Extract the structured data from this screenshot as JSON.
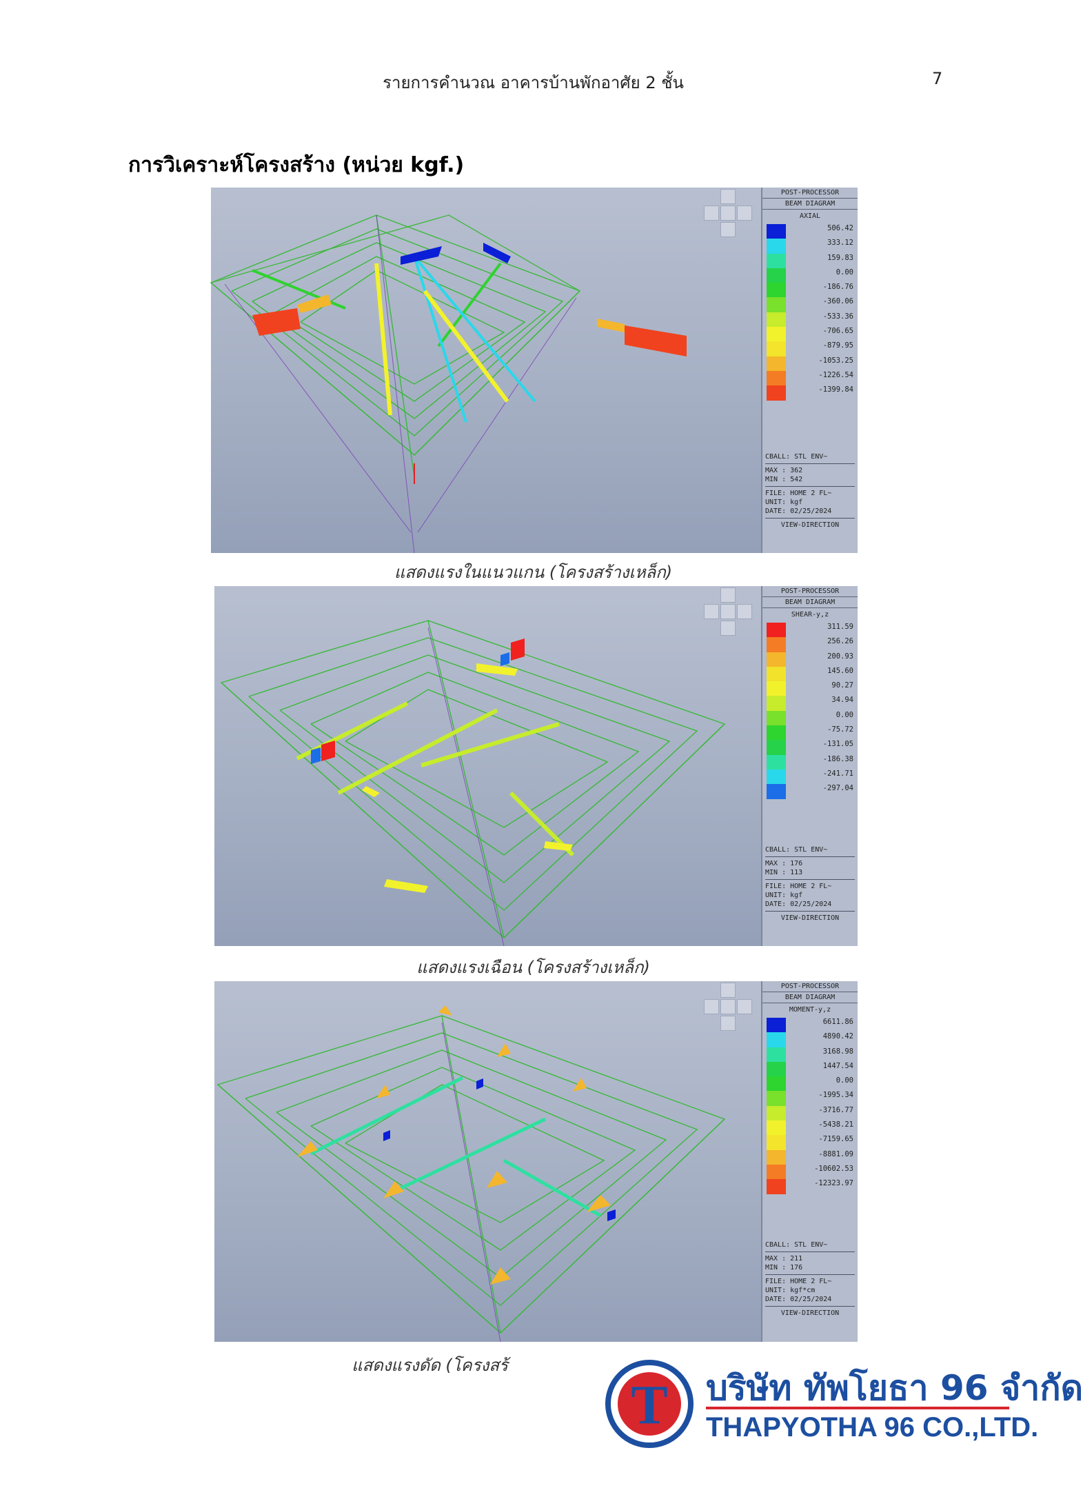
{
  "header": {
    "title": "รายการคำนวณ อาคารบ้านพักอาศัย 2 ชั้น",
    "page_number": "7"
  },
  "section_heading": "การวิเคราะห์โครงสร้าง (หน่วย kgf.)",
  "figures": [
    {
      "caption": "แสดงแรงในแนวแกน (โครงสร้างเหล็ก)",
      "panel": {
        "line1": "POST-PROCESSOR",
        "line2": "BEAM DIAGRAM",
        "component": "AXIAL",
        "legend_values": [
          "506.42",
          "333.12",
          "159.83",
          "0.00",
          "-186.76",
          "-360.06",
          "-533.36",
          "-706.65",
          "-879.95",
          "-1053.25",
          "-1226.54",
          "-1399.84"
        ],
        "legend_colors": [
          "#0a1fd6",
          "#29d8ea",
          "#2ee0a0",
          "#25d24a",
          "#2ed52e",
          "#79e02c",
          "#c6ec2c",
          "#f2f22c",
          "#f4e42c",
          "#f4b62c",
          "#f47c24",
          "#f0421e"
        ],
        "cball": "CBALL: STL ENV~",
        "max": "MAX : 362",
        "min": "MIN : 542",
        "file": "FILE: HOME 2 FL~",
        "unit": "UNIT: kgf",
        "date": "DATE: 02/25/2024",
        "view": "VIEW-DIRECTION"
      }
    },
    {
      "caption": "แสดงแรงเฉือน (โครงสร้างเหล็ก)",
      "panel": {
        "line1": "POST-PROCESSOR",
        "line2": "BEAM DIAGRAM",
        "component": "SHEAR-y,z",
        "legend_values": [
          "311.59",
          "256.26",
          "200.93",
          "145.60",
          "90.27",
          "34.94",
          "0.00",
          "-75.72",
          "-131.05",
          "-186.38",
          "-241.71",
          "-297.04"
        ],
        "legend_colors": [
          "#f0211e",
          "#f47c24",
          "#f4b62c",
          "#f2e22c",
          "#f2f22c",
          "#c6ec2c",
          "#79e02c",
          "#2ed52e",
          "#25d24a",
          "#2ee0a0",
          "#29d8ea",
          "#1c6de8"
        ],
        "cball": "CBALL: STL ENV~",
        "max": "MAX : 176",
        "min": "MIN : 113",
        "file": "FILE: HOME 2 FL~",
        "unit": "UNIT: kgf",
        "date": "DATE: 02/25/2024",
        "view": "VIEW-DIRECTION"
      }
    },
    {
      "caption": "แสดงแรงดัด (โครงสร้",
      "panel": {
        "line1": "POST-PROCESSOR",
        "line2": "BEAM DIAGRAM",
        "component": "MOMENT-y,z",
        "legend_values": [
          "6611.86",
          "4890.42",
          "3168.98",
          "1447.54",
          "0.00",
          "-1995.34",
          "-3716.77",
          "-5438.21",
          "-7159.65",
          "-8881.09",
          "-10602.53",
          "-12323.97"
        ],
        "legend_colors": [
          "#0a1fd6",
          "#29d8ea",
          "#2ee0a0",
          "#25d24a",
          "#2ed52e",
          "#79e02c",
          "#c6ec2c",
          "#f2f22c",
          "#f4e42c",
          "#f4b62c",
          "#f47c24",
          "#f0421e"
        ],
        "cball": "CBALL: STL ENV~",
        "max": "MAX : 211",
        "min": "MIN : 176",
        "file": "FILE: HOME 2 FL~",
        "unit": "UNIT: kgf*cm",
        "date": "DATE: 02/25/2024",
        "view": "VIEW-DIRECTION"
      }
    }
  ],
  "logo": {
    "name_th": "บริษัท ทัพโยธา 96 จำกัด",
    "name_en": "THAPYOTHA 96 CO.,LTD.",
    "mark_letter": "T"
  }
}
